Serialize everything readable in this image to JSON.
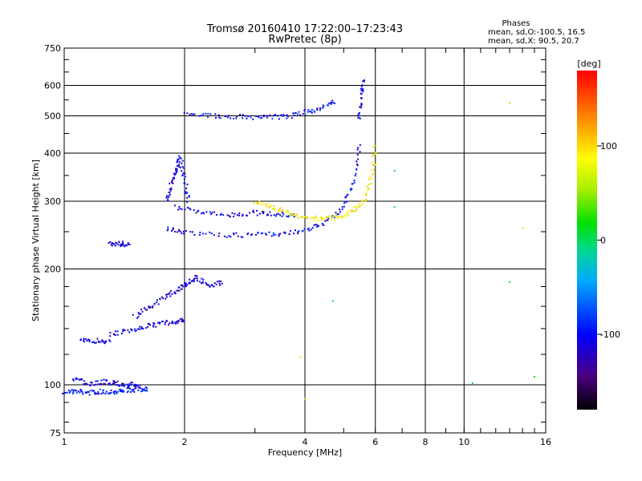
{
  "header": {
    "title": "Tromsø 20160410 17:22:00–17:23:43",
    "subtitle": "RwPretec (8p)"
  },
  "phases": {
    "title": "Phases",
    "o_line": "mean, sd,O:-100.5, 16.5",
    "x_line": "mean, sd,X:  90.5, 20.7"
  },
  "colorbar": {
    "label": "[deg]",
    "range": [
      -180,
      180
    ],
    "ticks": [
      100,
      0,
      -100
    ],
    "tick_labels": [
      "100",
      "0",
      "-100"
    ]
  },
  "chart_data": {
    "type": "scatter",
    "title": "Tromsø 20160410 17:22:00–17:23:43",
    "subtitle": "RwPretec (8p)",
    "xlabel": "Frequency [MHz]",
    "ylabel": "Stationary phase Virtual Height [km]",
    "x_scale": "log",
    "y_scale": "log",
    "xlim": [
      1,
      16
    ],
    "ylim": [
      75,
      750
    ],
    "x_ticks": [
      1,
      2,
      4,
      6,
      8,
      10,
      16
    ],
    "x_tick_labels": [
      "1",
      "2",
      "4",
      "6",
      "8",
      "10",
      "16"
    ],
    "y_ticks": [
      75,
      100,
      200,
      300,
      400,
      500,
      600,
      750
    ],
    "y_tick_labels": [
      "75",
      "100",
      "200",
      "300",
      "400",
      "500",
      "600",
      "750"
    ],
    "x_grid": [
      2,
      4,
      6,
      8,
      10
    ],
    "y_grid": [
      100,
      200,
      300,
      400,
      500,
      600
    ],
    "color_value": "phase [deg]",
    "traces": [
      {
        "id": "E-low",
        "x": [
          1.0,
          1.08,
          1.16,
          1.25,
          1.35,
          1.45,
          1.55,
          1.62
        ],
        "y": [
          96,
          96,
          95.5,
          96,
          96,
          97,
          97,
          98
        ],
        "phase": -95
      },
      {
        "id": "E-scatter",
        "x": [
          1.05,
          1.15,
          1.25,
          1.35,
          1.45,
          1.55
        ],
        "y": [
          104,
          100,
          102,
          101,
          100,
          100
        ],
        "phase": -110
      },
      {
        "id": "Es-130",
        "x": [
          1.1,
          1.2,
          1.3
        ],
        "y": [
          130,
          130,
          130
        ],
        "phase": -105
      },
      {
        "id": "Es-230",
        "x": [
          1.3,
          1.38,
          1.45
        ],
        "y": [
          232,
          233,
          231
        ],
        "phase": -110
      },
      {
        "id": "F1-low",
        "x": [
          1.3,
          1.45,
          1.6,
          1.75,
          1.9,
          2.0
        ],
        "y": [
          135,
          138,
          142,
          144,
          146,
          147
        ],
        "phase": -110
      },
      {
        "id": "F1-rise",
        "x": [
          1.5,
          1.65,
          1.8,
          1.95,
          2.05,
          2.15,
          2.3,
          2.5
        ],
        "y": [
          150,
          160,
          170,
          178,
          185,
          190,
          180,
          185
        ],
        "phase": -115
      },
      {
        "id": "F-column",
        "x": [
          1.8,
          1.85,
          1.9,
          1.95,
          2.0,
          2.05
        ],
        "y": [
          300,
          330,
          360,
          390,
          340,
          300
        ],
        "phase": -110
      },
      {
        "id": "O-F2-lower",
        "x": [
          1.8,
          2.0,
          2.5,
          3.0,
          3.5,
          4.0,
          4.5,
          5.0,
          5.3,
          5.5
        ],
        "y": [
          255,
          248,
          245,
          245,
          247,
          252,
          265,
          290,
          340,
          430
        ],
        "phase": -105
      },
      {
        "id": "O-F2-nose",
        "x": [
          5.45,
          5.55,
          5.6
        ],
        "y": [
          490,
          560,
          630
        ],
        "phase": -110
      },
      {
        "id": "O-F2-upper",
        "x": [
          2.0,
          2.4,
          2.8,
          3.2,
          3.6,
          4.0,
          4.4,
          4.8
        ],
        "y": [
          510,
          500,
          497,
          495,
          498,
          510,
          525,
          545
        ],
        "phase": -100
      },
      {
        "id": "O-mid-band",
        "x": [
          1.9,
          2.2,
          2.6,
          3.0,
          3.4,
          3.8
        ],
        "y": [
          290,
          280,
          275,
          280,
          278,
          275
        ],
        "phase": -110
      },
      {
        "id": "X-F2",
        "x": [
          3.0,
          3.3,
          3.6,
          4.0,
          4.4,
          4.8,
          5.2,
          5.6,
          5.9,
          6.0
        ],
        "y": [
          300,
          290,
          280,
          272,
          270,
          272,
          280,
          300,
          350,
          420
        ],
        "phase": 90
      },
      {
        "id": "isolated",
        "x": [
          3.9,
          4.0,
          4.7,
          6.7,
          6.7,
          10.5,
          13.0,
          13.0,
          14.0,
          15.0
        ],
        "y": [
          118,
          92,
          165,
          290,
          360,
          101,
          540,
          185,
          255,
          105
        ],
        "phase": 20
      }
    ]
  }
}
